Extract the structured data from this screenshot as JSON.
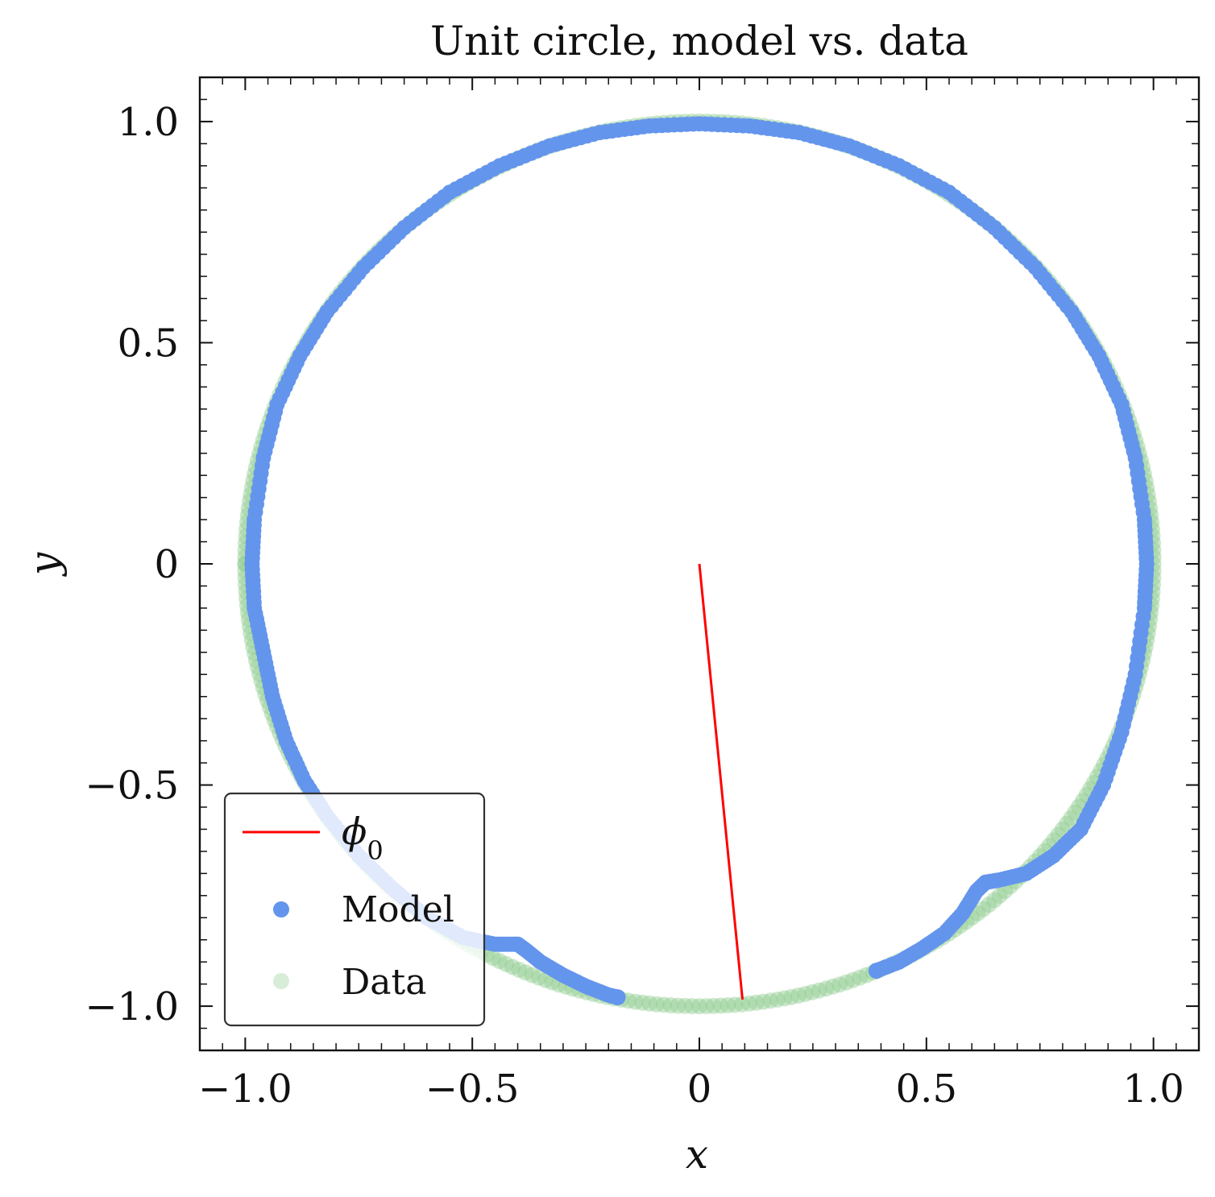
{
  "chart_data": {
    "type": "scatter",
    "title": "Unit circle, model vs. data",
    "xlabel": "x",
    "ylabel": "y",
    "xlim": [
      -1.1,
      1.1
    ],
    "ylim": [
      -1.1,
      1.1
    ],
    "x_ticks": [
      -1.0,
      -0.5,
      0,
      0.5,
      1.0
    ],
    "y_ticks": [
      -1.0,
      -0.5,
      0,
      0.5,
      1.0
    ],
    "x_tick_labels": [
      "−1.0",
      "−0.5",
      "0",
      "0.5",
      "1.0"
    ],
    "y_tick_labels": [
      "−1.0",
      "−0.5",
      "0",
      "0.5",
      "1.0"
    ],
    "grid": false,
    "legend_position": "lower-left",
    "line": {
      "name": "ϕ",
      "name_subscript": "0",
      "color": "#ff0000",
      "x": [
        0,
        0.095
      ],
      "y": [
        0,
        -0.985
      ]
    },
    "series": [
      {
        "name": "Data",
        "color": "#8fcb8f",
        "alpha": 0.45,
        "angle_deg_range": [
          180,
          540
        ],
        "radius": 1.0,
        "marker": "circle"
      },
      {
        "name": "Model",
        "color": "#6495ed",
        "alpha": 1.0,
        "marker": "circle",
        "segments": [
          {
            "x": [
              -0.18,
              -0.2,
              -0.25,
              -0.3,
              -0.35,
              -0.38,
              -0.4,
              -0.45,
              -0.52,
              -0.6,
              -0.68,
              -0.75,
              -0.82,
              -0.87,
              -0.91,
              -0.94,
              -0.96,
              -0.98,
              -0.985,
              -0.98,
              -0.96,
              -0.93,
              -0.88,
              -0.82,
              -0.74,
              -0.65,
              -0.55,
              -0.44,
              -0.33,
              -0.22,
              -0.11,
              0.0,
              0.11,
              0.22,
              0.33,
              0.44,
              0.55,
              0.65,
              0.74,
              0.82,
              0.88,
              0.93,
              0.96,
              0.98,
              0.985,
              0.98,
              0.96,
              0.93,
              0.89,
              0.84,
              0.78,
              0.72,
              0.66,
              0.63,
              0.61,
              0.58,
              0.54,
              0.49,
              0.44,
              0.39
            ],
            "y": [
              -0.98,
              -0.975,
              -0.955,
              -0.93,
              -0.9,
              -0.875,
              -0.86,
              -0.86,
              -0.845,
              -0.8,
              -0.73,
              -0.66,
              -0.57,
              -0.49,
              -0.4,
              -0.3,
              -0.2,
              -0.1,
              0.0,
              0.1,
              0.24,
              0.36,
              0.47,
              0.57,
              0.67,
              0.76,
              0.84,
              0.9,
              0.945,
              0.975,
              0.99,
              0.995,
              0.99,
              0.975,
              0.945,
              0.9,
              0.84,
              0.76,
              0.67,
              0.57,
              0.47,
              0.36,
              0.24,
              0.1,
              0.0,
              -0.1,
              -0.25,
              -0.38,
              -0.5,
              -0.6,
              -0.66,
              -0.7,
              -0.715,
              -0.72,
              -0.74,
              -0.79,
              -0.835,
              -0.87,
              -0.9,
              -0.92
            ]
          }
        ]
      }
    ]
  }
}
